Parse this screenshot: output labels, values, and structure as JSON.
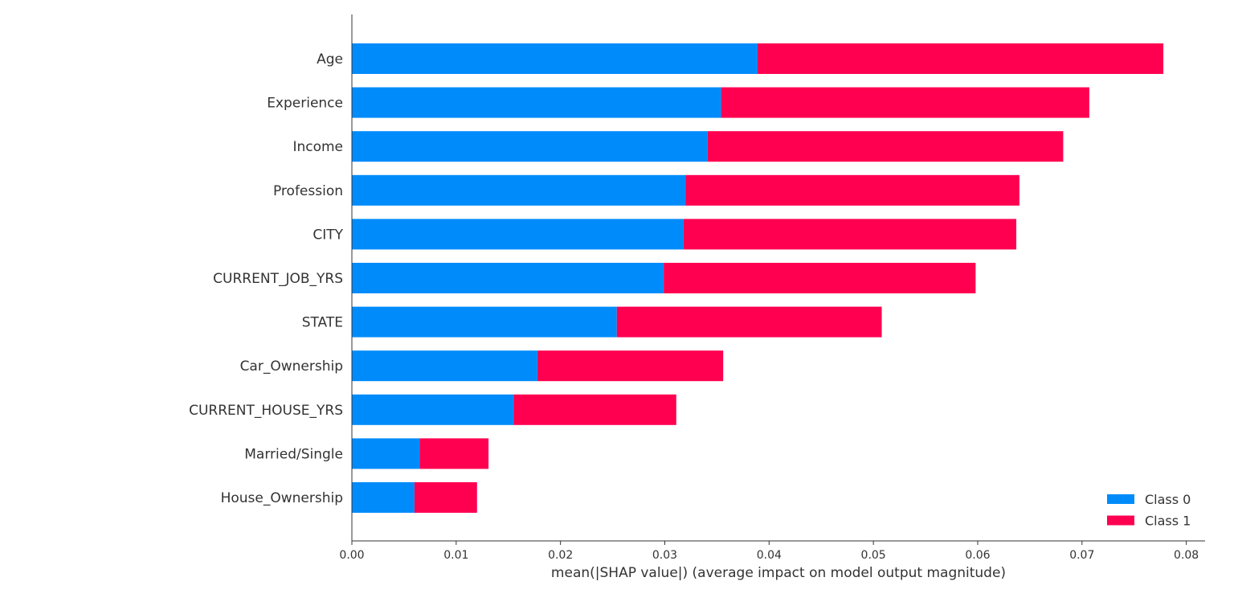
{
  "chart_data": {
    "type": "bar",
    "stacked": true,
    "orientation": "horizontal",
    "categories": [
      "Age",
      "Experience",
      "Income",
      "Profession",
      "CITY",
      "CURRENT_JOB_YRS",
      "STATE",
      "Car_Ownership",
      "CURRENT_HOUSE_YRS",
      "Married/Single",
      "House_Ownership"
    ],
    "series": [
      {
        "name": "Class 0",
        "color": "#008bfb",
        "values": [
          0.0389,
          0.0354,
          0.0341,
          0.032,
          0.0318,
          0.0299,
          0.0254,
          0.0178,
          0.0155,
          0.0065,
          0.006
        ]
      },
      {
        "name": "Class 1",
        "color": "#ff0051",
        "values": [
          0.0389,
          0.0353,
          0.0341,
          0.032,
          0.0319,
          0.0299,
          0.0254,
          0.0178,
          0.0156,
          0.0066,
          0.006
        ]
      }
    ],
    "xlabel": "mean(|SHAP value|) (average impact on model output magnitude)",
    "ylabel": "",
    "xlim": [
      0,
      0.0818
    ],
    "xticks": [
      "0.00",
      "0.01",
      "0.02",
      "0.03",
      "0.04",
      "0.05",
      "0.06",
      "0.07",
      "0.08"
    ],
    "xtick_values": [
      0,
      0.01,
      0.02,
      0.03,
      0.04,
      0.05,
      0.06,
      0.07,
      0.08
    ],
    "grid": false,
    "legend_position": "bottom-right"
  }
}
